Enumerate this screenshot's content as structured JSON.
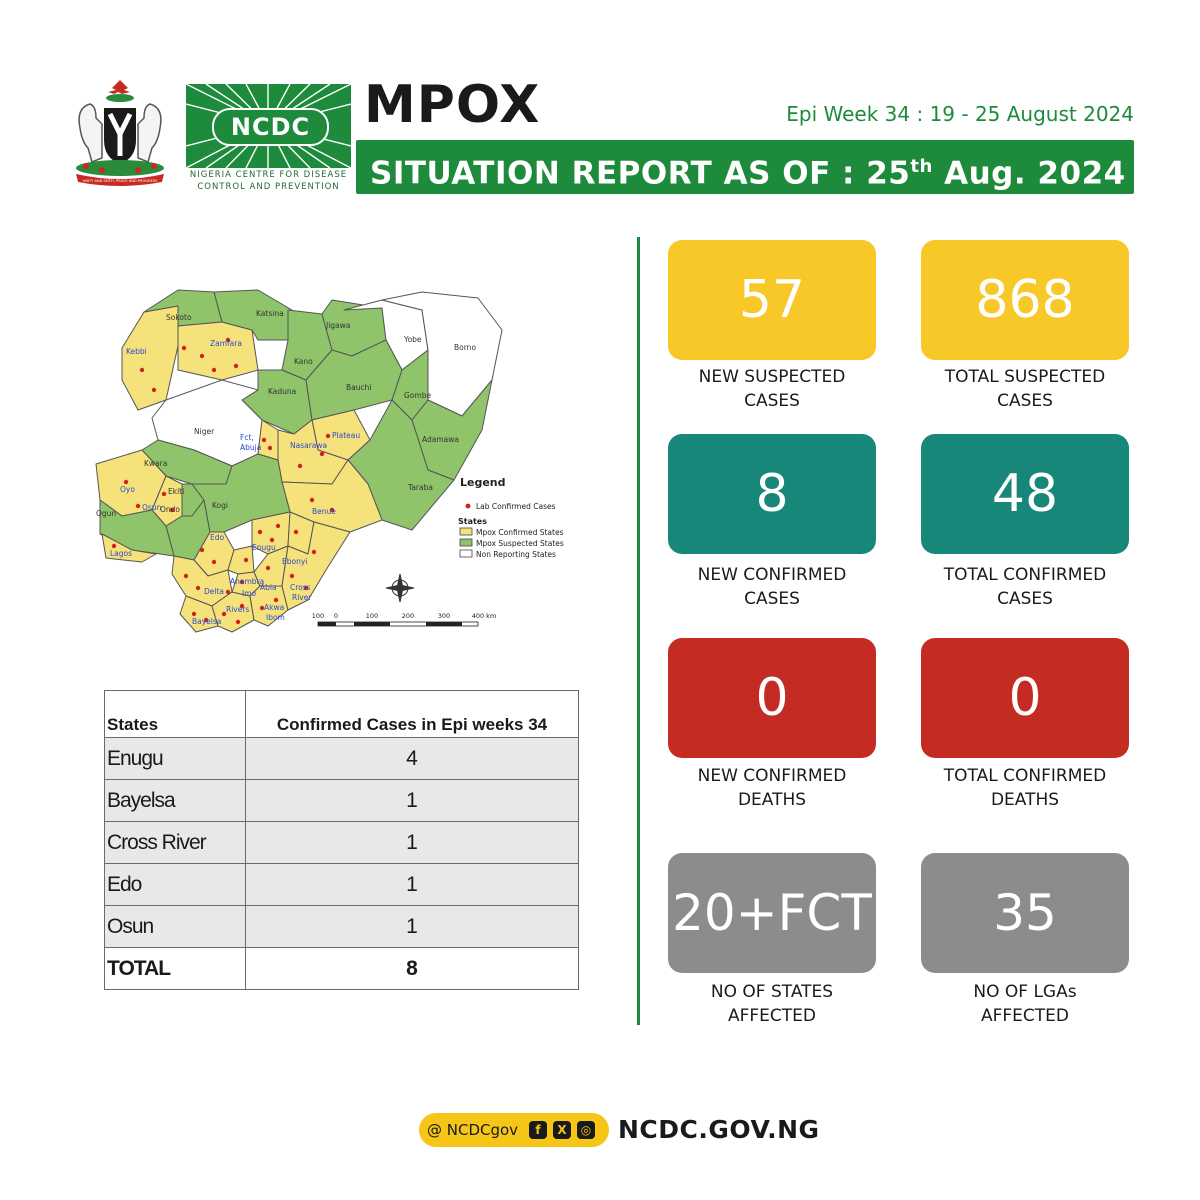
{
  "header": {
    "coat_of_arms_motto": "UNITY AND FAITH, PEACE AND PROGRESS",
    "ncdc_logo_text": "NCDC",
    "ncdc_sub1": "NIGERIA CENTRE FOR DISEASE",
    "ncdc_sub2": "CONTROL AND PREVENTION",
    "title": "MPOX",
    "epi_week": "Epi Week 34 : 19 - 25 August 2024",
    "report_prefix": "SITUATION REPORT AS OF : 25",
    "report_sup": "th",
    "report_suffix": " Aug. 2024"
  },
  "map": {
    "states": {
      "sokoto": "Sokoto",
      "kebbi": "Kebbi",
      "zamfara": "Zamfara",
      "katsina": "Katsina",
      "jigawa": "Jigawa",
      "kano": "Kano",
      "yobe": "Yobe",
      "borno": "Borno",
      "kaduna": "Kaduna",
      "bauchi": "Bauchi",
      "gombe": "Gombe",
      "niger": "Niger",
      "adamawa": "Adamawa",
      "fct": "Fct,",
      "abuja": "Abuja",
      "nasarawa": "Nasarawa",
      "plateau": "Plateau",
      "kwara": "Kwara",
      "oyo": "Oyo",
      "osun": "Osun",
      "ekiti": "Ekiti",
      "ondo": "Ondo",
      "ogun": "Ogun",
      "lagos": "Lagos",
      "kogi": "Kogi",
      "taraba": "Taraba",
      "benue": "Benue",
      "edo": "Edo",
      "anambra": "Anambra",
      "enugu": "Enugu",
      "ebonyi": "Ebonyi",
      "delta": "Delta",
      "imo": "Imo",
      "abia": "Abia",
      "cross1": "Cross",
      "cross2": "River",
      "rivers": "Rivers",
      "bayelsa": "Bayelsa",
      "akwa": "Akwa",
      "ibom": "Ibom"
    },
    "legend": {
      "title": "Legend",
      "lab_confirmed": "Lab Confirmed Cases",
      "states_heading": "States",
      "confirmed_states": "Mpox Confirmed States",
      "suspected_states": "Mpox Suspected States",
      "non_reporting": "Non Reporting States"
    },
    "scale_labels": [
      "100",
      "0",
      "100",
      "200",
      "300",
      "400 km"
    ],
    "colors": {
      "confirmed": "#f5e27a",
      "suspected": "#8fc46a",
      "non_reporting": "#ffffff",
      "dot": "#d3201f"
    }
  },
  "table": {
    "headers": [
      "States",
      "Confirmed Cases in Epi weeks 34"
    ],
    "rows": [
      {
        "state": "Enugu",
        "cases": "4"
      },
      {
        "state": "Bayelsa",
        "cases": "1"
      },
      {
        "state": "Cross River",
        "cases": "1"
      },
      {
        "state": "Edo",
        "cases": "1"
      },
      {
        "state": "Osun",
        "cases": "1"
      }
    ],
    "total_label": "TOTAL",
    "total_value": "8"
  },
  "stats": [
    {
      "value": "57",
      "label1": "NEW SUSPECTED",
      "label2": "CASES",
      "color": "#f8c828"
    },
    {
      "value": "868",
      "label1": "TOTAL SUSPECTED",
      "label2": "CASES",
      "color": "#f8c828"
    },
    {
      "value": "8",
      "label1": "NEW CONFIRMED",
      "label2": "CASES",
      "color": "#17877a"
    },
    {
      "value": "48",
      "label1": "TOTAL CONFIRMED",
      "label2": "CASES",
      "color": "#17877a"
    },
    {
      "value": "0",
      "label1": "NEW CONFIRMED",
      "label2": "DEATHS",
      "color": "#c42b23"
    },
    {
      "value": "0",
      "label1": "TOTAL CONFIRMED",
      "label2": "DEATHS",
      "color": "#c42b23"
    },
    {
      "value": "20+FCT",
      "label1": "NO OF STATES",
      "label2": "AFFECTED",
      "color": "#8c8c8c"
    },
    {
      "value": "35",
      "label1": "NO OF LGAs",
      "label2": "AFFECTED",
      "color": "#8c8c8c"
    }
  ],
  "footer": {
    "handle": "@ NCDCgov",
    "icons": [
      "facebook-icon",
      "x-icon",
      "instagram-icon"
    ],
    "site": "NCDC.GOV.NG"
  },
  "brand_colors": {
    "green": "#1e8a3c",
    "yellow": "#f5c518"
  }
}
